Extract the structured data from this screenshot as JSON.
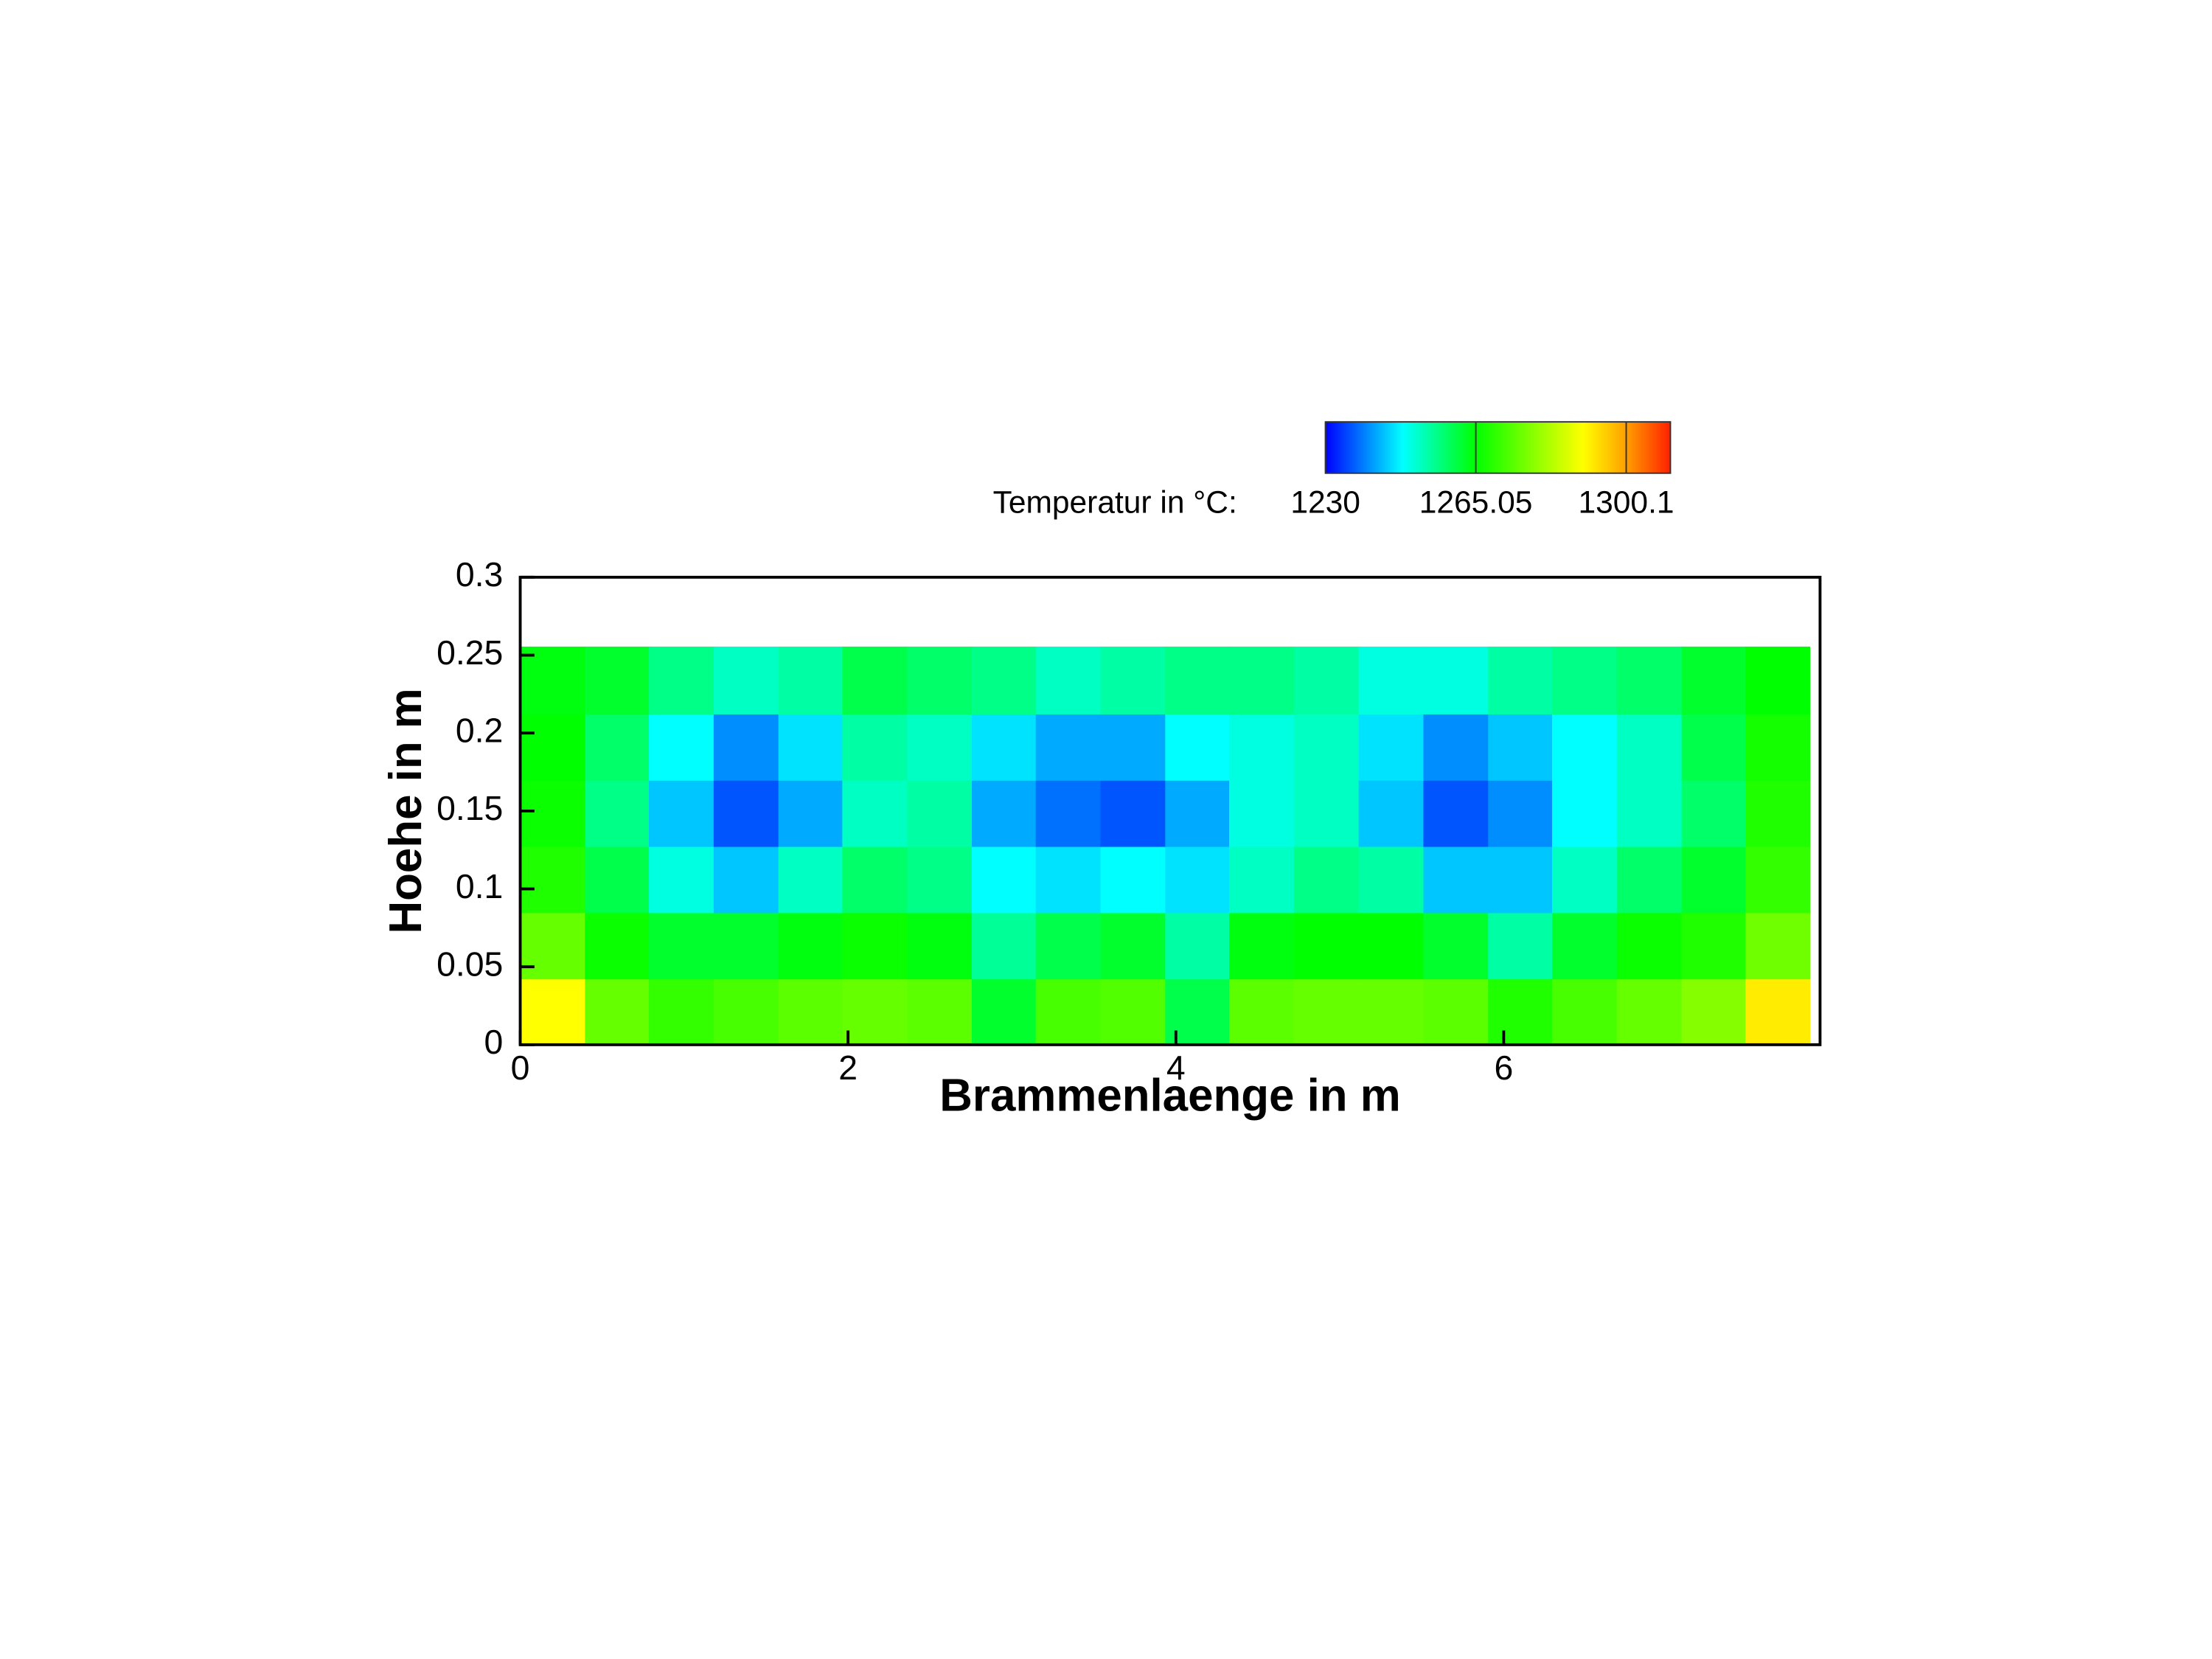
{
  "chart_data": {
    "type": "heatmap",
    "x_label": "Brammenlaenge in m",
    "y_label": "Hoehe in m",
    "xlim": [
      0,
      7.93
    ],
    "ylim": [
      0,
      0.3
    ],
    "xticks": [
      0,
      2,
      4,
      6
    ],
    "yticks": [
      0,
      0.05,
      0.1,
      0.15,
      0.2,
      0.25,
      0.3
    ],
    "x": [
      0.2,
      0.59,
      0.98,
      1.38,
      1.77,
      2.16,
      2.56,
      2.95,
      3.34,
      3.74,
      4.13,
      4.52,
      4.92,
      5.31,
      5.71,
      6.1,
      6.49,
      6.89,
      7.28,
      7.67
    ],
    "y": [
      0.021,
      0.064,
      0.106,
      0.149,
      0.191,
      0.234
    ],
    "values": [
      [
        1290,
        1275,
        1270,
        1272,
        1274,
        1275,
        1274,
        1262,
        1272,
        1273,
        1260,
        1274,
        1275,
        1275,
        1274,
        1268,
        1272,
        1275,
        1278,
        1292
      ],
      [
        1275,
        1266,
        1262,
        1262,
        1264,
        1266,
        1264,
        1255,
        1260,
        1262,
        1254,
        1264,
        1265,
        1265,
        1262,
        1254,
        1262,
        1266,
        1268,
        1276
      ],
      [
        1268,
        1260,
        1250,
        1244,
        1252,
        1258,
        1256,
        1248,
        1246,
        1248,
        1246,
        1252,
        1256,
        1254,
        1244,
        1244,
        1252,
        1258,
        1262,
        1270
      ],
      [
        1266,
        1256,
        1244,
        1236,
        1242,
        1252,
        1254,
        1242,
        1238,
        1236,
        1242,
        1250,
        1252,
        1244,
        1236,
        1240,
        1248,
        1252,
        1258,
        1268
      ],
      [
        1265,
        1258,
        1248,
        1240,
        1246,
        1254,
        1252,
        1246,
        1242,
        1242,
        1248,
        1250,
        1252,
        1246,
        1240,
        1244,
        1248,
        1252,
        1260,
        1267
      ],
      [
        1264,
        1262,
        1256,
        1252,
        1254,
        1260,
        1258,
        1256,
        1252,
        1254,
        1256,
        1256,
        1254,
        1250,
        1250,
        1254,
        1256,
        1258,
        1262,
        1265
      ]
    ],
    "colorbar": {
      "label": "Temperatur in °C:",
      "range": [
        1230,
        1310.4
      ],
      "ticks": [
        1230,
        1265.05,
        1300.1
      ]
    },
    "colormap": [
      {
        "value": 1230,
        "color": "#0000ff"
      },
      {
        "value": 1248,
        "color": "#00ffff"
      },
      {
        "value": 1265,
        "color": "#00ff00"
      },
      {
        "value": 1290,
        "color": "#ffff00"
      },
      {
        "value": 1300,
        "color": "#ffa000"
      },
      {
        "value": 1310.4,
        "color": "#ff2000"
      }
    ]
  }
}
